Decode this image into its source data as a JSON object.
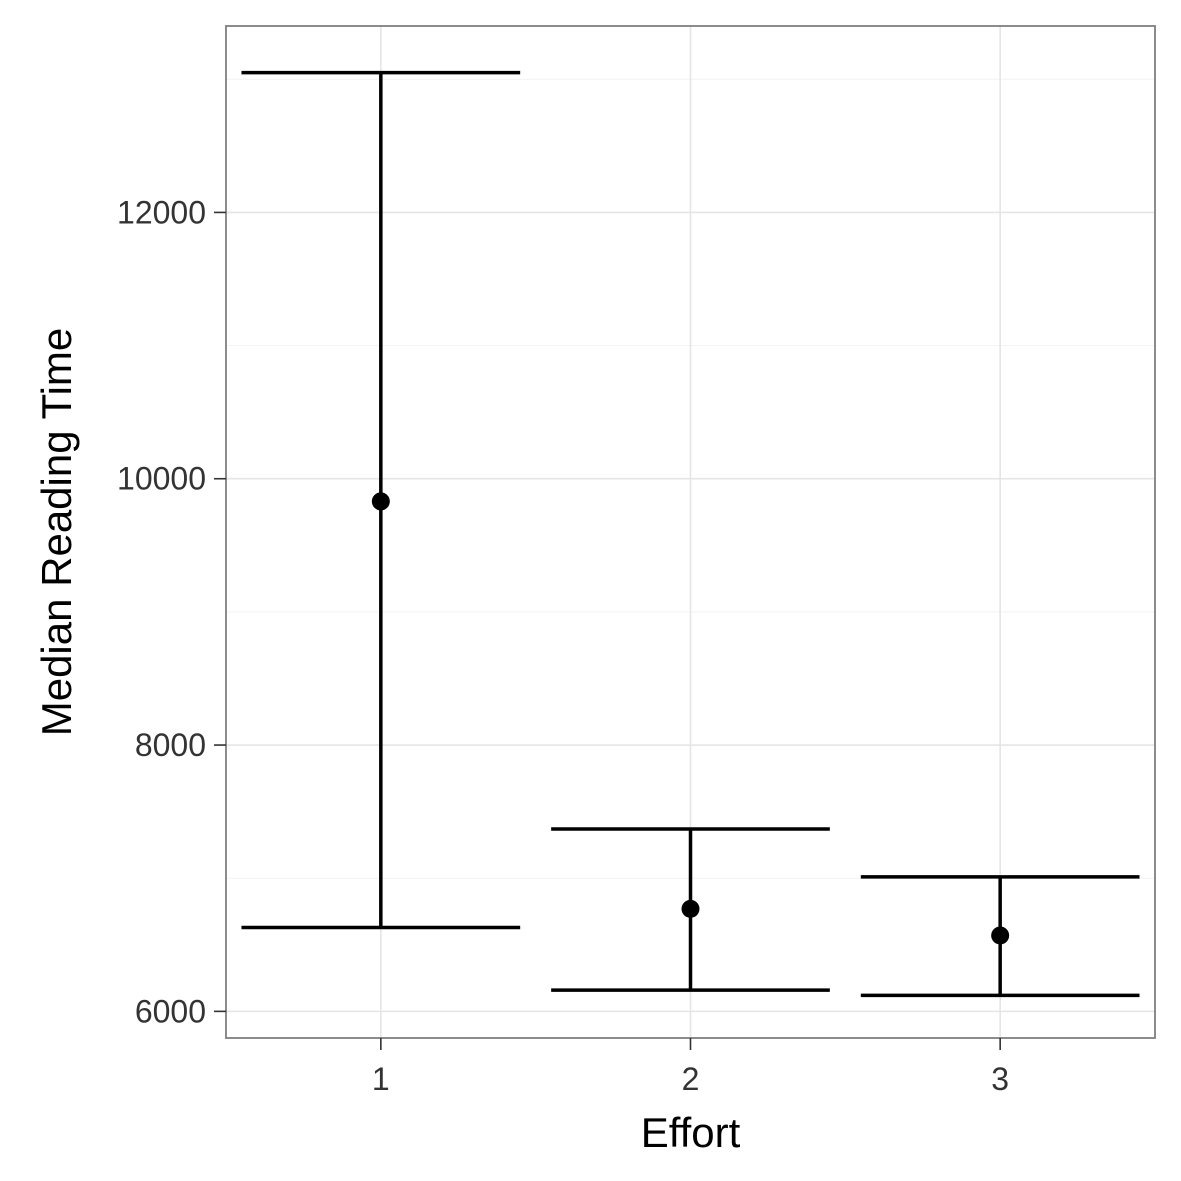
{
  "chart_data": {
    "type": "errorbar",
    "categories": [
      "1",
      "2",
      "3"
    ],
    "points": [
      {
        "x": "1",
        "y": 9830,
        "ymin": 6630,
        "ymax": 13050
      },
      {
        "x": "2",
        "y": 6770,
        "ymin": 6160,
        "ymax": 7370
      },
      {
        "x": "3",
        "y": 6570,
        "ymin": 6120,
        "ymax": 7010
      }
    ],
    "xlabel": "Effort",
    "ylabel": "Median Reading Time",
    "ylim": [
      5800,
      13400
    ],
    "yticks": [
      6000,
      8000,
      10000,
      12000
    ],
    "ytick_labels": [
      "6000",
      "8000",
      "10000",
      "12000"
    ],
    "grid": true,
    "theme": "bw",
    "colors": {
      "marks": "#000000",
      "grid_major": "#e5e5e5",
      "grid_minor": "#f2f2f2",
      "panel_border": "#7f7f7f"
    }
  }
}
